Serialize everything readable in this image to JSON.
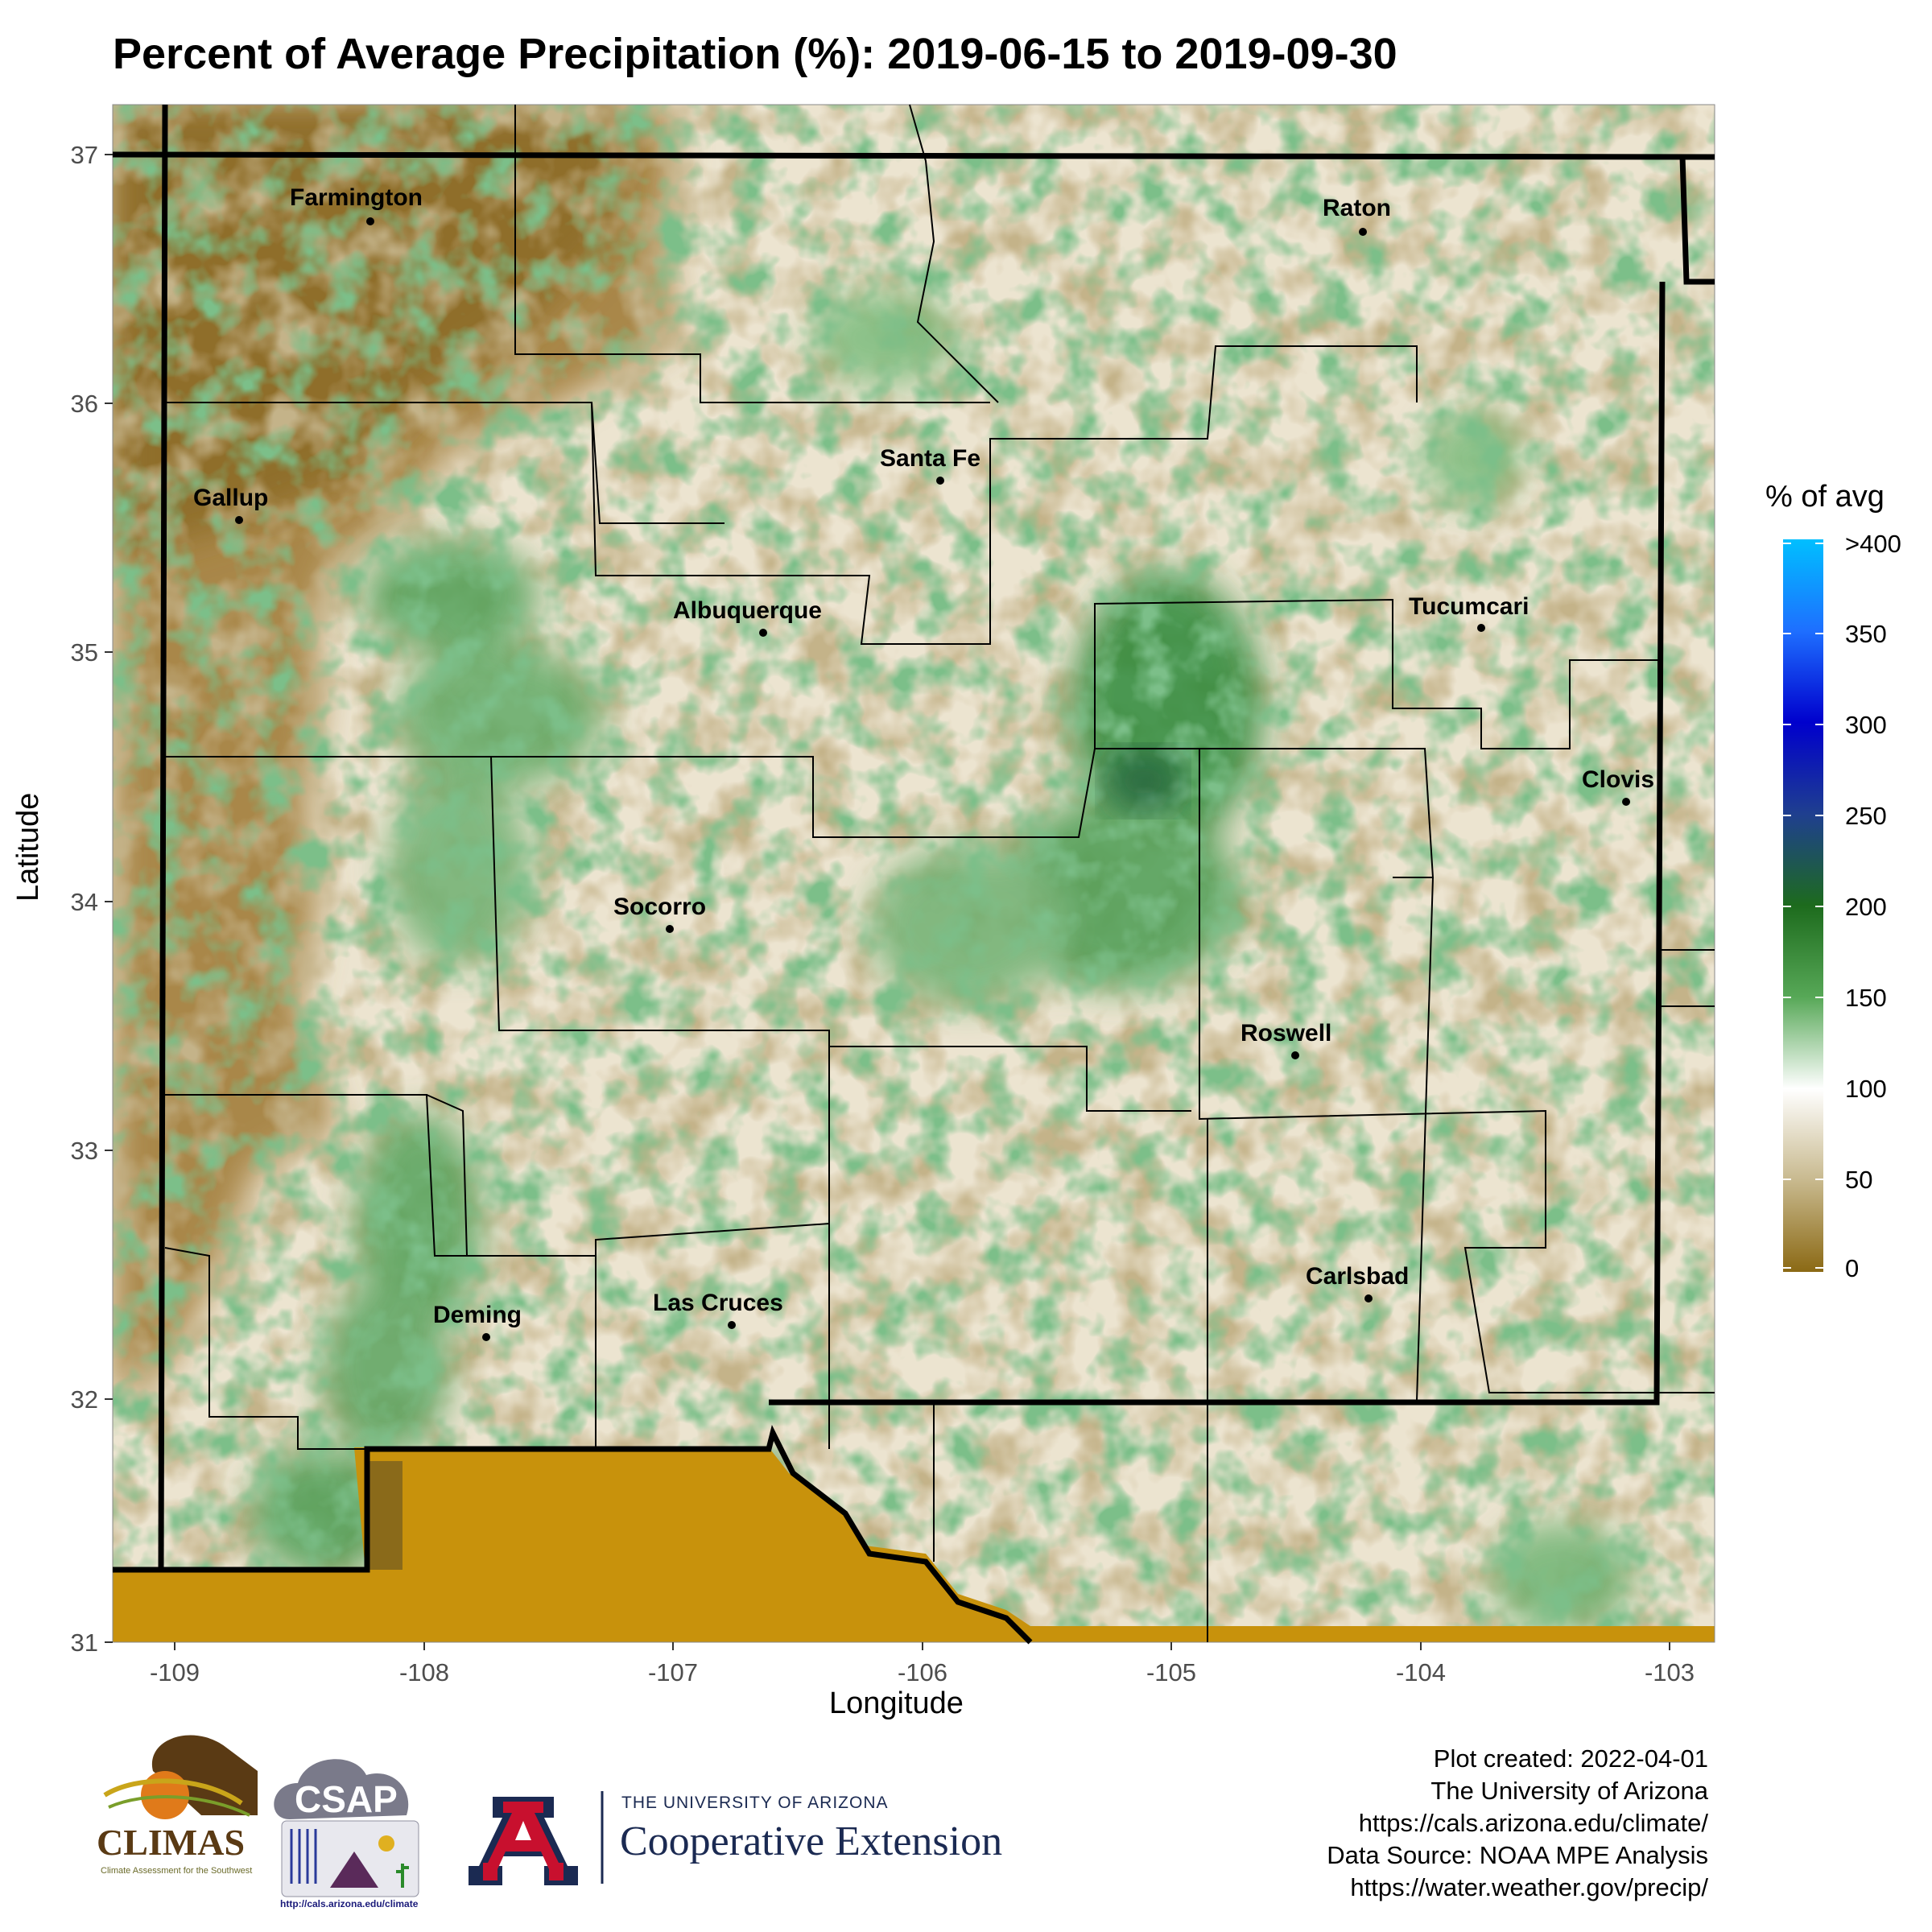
{
  "title": "Percent of Average Precipitation (%): 2019-06-15 to 2019-09-30",
  "axes": {
    "x_title": "Longitude",
    "y_title": "Latitude",
    "x_ticks": [
      "-109",
      "-108",
      "-107",
      "-106",
      "-105",
      "-104",
      "-103"
    ],
    "y_ticks": [
      "37",
      "36",
      "35",
      "34",
      "33",
      "32",
      "31"
    ],
    "x_range": [
      -109.25,
      -102.8
    ],
    "y_range": [
      31.0,
      37.2
    ]
  },
  "legend": {
    "title": "% of avg",
    "ticks": [
      ">400",
      "350",
      "300",
      "250",
      "200",
      "150",
      "100",
      "50",
      "0"
    ],
    "colors": [
      "#00bfff",
      "#1e6fff",
      "#0000cd",
      "#1f3f8f",
      "#1d6b1d",
      "#57a857",
      "#ffffff",
      "#c8b98e",
      "#8b6914"
    ]
  },
  "cities": [
    {
      "name": "Farmington",
      "lon": -108.22,
      "lat": 36.73
    },
    {
      "name": "Raton",
      "lon": -104.44,
      "lat": 36.9
    },
    {
      "name": "Gallup",
      "lon": -108.74,
      "lat": 35.53
    },
    {
      "name": "Santa Fe",
      "lon": -105.94,
      "lat": 35.69
    },
    {
      "name": "Albuquerque",
      "lon": -106.65,
      "lat": 35.08
    },
    {
      "name": "Tucumcari",
      "lon": -103.72,
      "lat": 35.17
    },
    {
      "name": "Clovis",
      "lon": -103.2,
      "lat": 34.4
    },
    {
      "name": "Socorro",
      "lon": -106.89,
      "lat": 34.06
    },
    {
      "name": "Roswell",
      "lon": -104.52,
      "lat": 33.39
    },
    {
      "name": "Carlsbad",
      "lon": -104.23,
      "lat": 32.42
    },
    {
      "name": "Deming",
      "lon": -107.76,
      "lat": 32.27
    },
    {
      "name": "Las Cruces",
      "lon": -106.78,
      "lat": 32.32
    }
  ],
  "credits": [
    "Plot created: 2022-04-01",
    "The University of Arizona",
    "https://cals.arizona.edu/climate/",
    "Data Source: NOAA MPE Analysis",
    "https://water.weather.gov/precip/"
  ],
  "logos": {
    "climas": "CLIMAS",
    "climas_sub": "Climate Assessment for the Southwest",
    "csap": "CSAP",
    "csap_url": "http://cals.arizona.edu/climate",
    "ua_line1": "THE UNIVERSITY OF ARIZONA",
    "ua_line2": "Cooperative Extension"
  }
}
